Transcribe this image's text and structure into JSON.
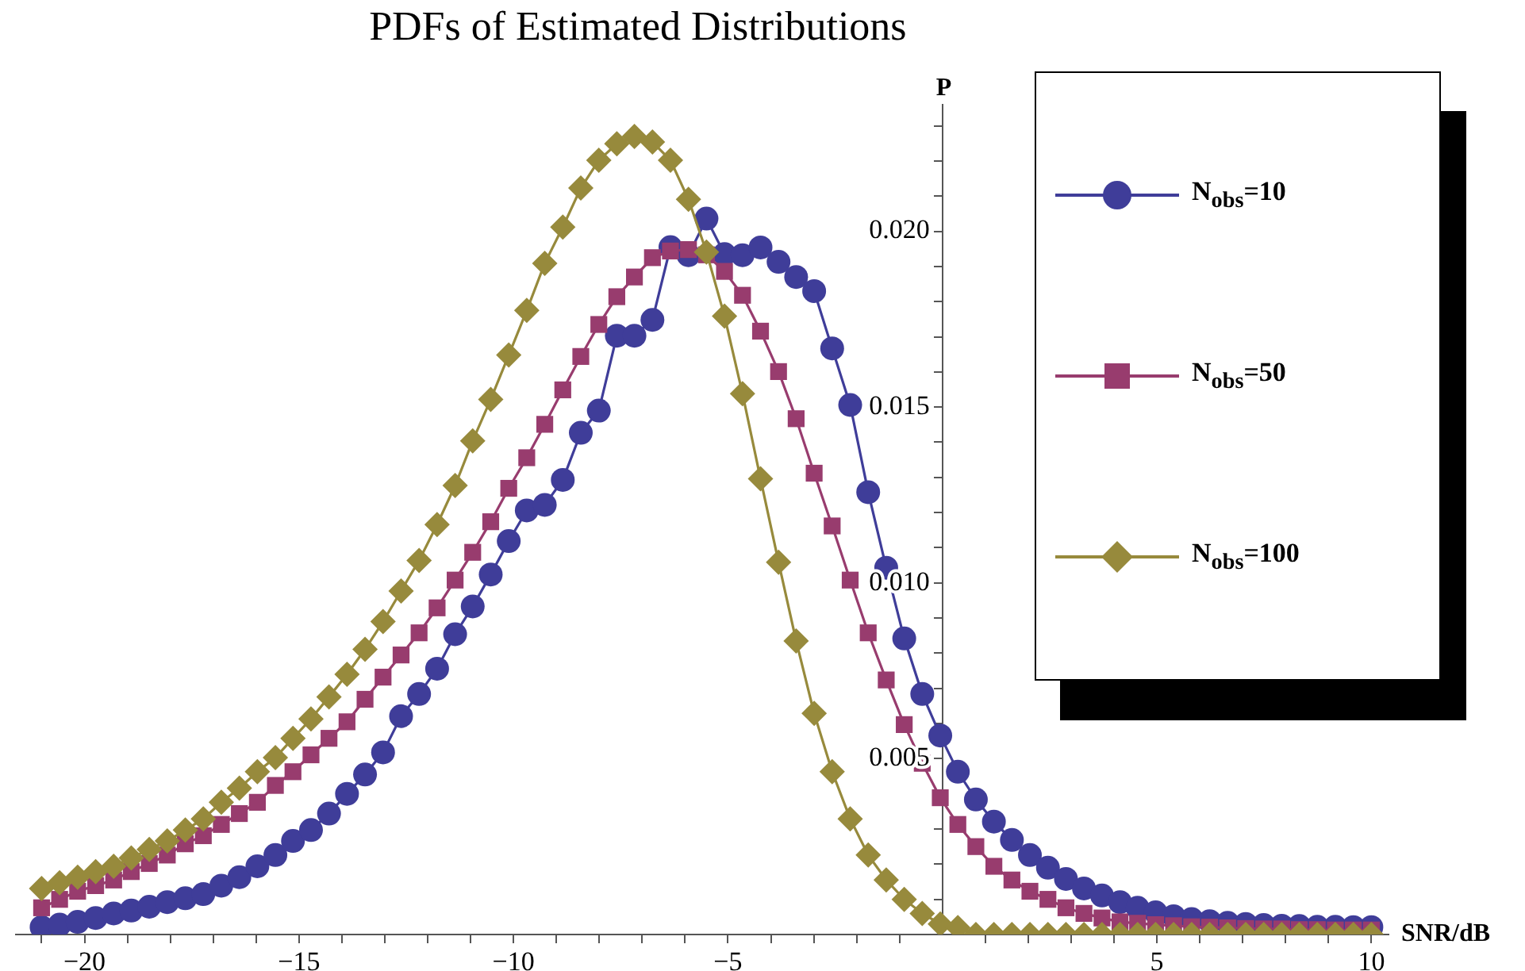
{
  "chart_data": {
    "type": "line",
    "title": "PDFs of Estimated Distributions",
    "xlabel": "SNR/dB",
    "ylabel": "P",
    "legend": "top right",
    "xlim": [
      -21.6,
      10.4
    ],
    "ylim": [
      0,
      0.0236
    ],
    "xticks": [
      {
        "value": -21,
        "label": null
      },
      {
        "value": -20,
        "label": "−20"
      },
      {
        "value": -19,
        "label": null
      },
      {
        "value": -18,
        "label": null
      },
      {
        "value": -17,
        "label": null
      },
      {
        "value": -16,
        "label": null
      },
      {
        "value": -15,
        "label": "−15"
      },
      {
        "value": -14,
        "label": null
      },
      {
        "value": -13,
        "label": null
      },
      {
        "value": -12,
        "label": null
      },
      {
        "value": -11,
        "label": null
      },
      {
        "value": -10,
        "label": "−10"
      },
      {
        "value": -9,
        "label": null
      },
      {
        "value": -8,
        "label": null
      },
      {
        "value": -7,
        "label": null
      },
      {
        "value": -6,
        "label": null
      },
      {
        "value": -5,
        "label": "−5"
      },
      {
        "value": -4,
        "label": null
      },
      {
        "value": -3,
        "label": null
      },
      {
        "value": -2,
        "label": null
      },
      {
        "value": -1,
        "label": null
      },
      {
        "value": 1,
        "label": null
      },
      {
        "value": 2,
        "label": null
      },
      {
        "value": 3,
        "label": null
      },
      {
        "value": 4,
        "label": null
      },
      5,
      {
        "value": 6,
        "label": null
      },
      {
        "value": 7,
        "label": null
      },
      {
        "value": 8,
        "label": null
      },
      {
        "value": 9,
        "label": null
      },
      10
    ],
    "yticks": [
      {
        "value": 0.001,
        "label": null
      },
      {
        "value": 0.002,
        "label": null
      },
      {
        "value": 0.003,
        "label": null
      },
      {
        "value": 0.004,
        "label": null
      },
      {
        "value": 0.005,
        "label": "0.005"
      },
      {
        "value": 0.006,
        "label": null
      },
      {
        "value": 0.007,
        "label": null
      },
      {
        "value": 0.008,
        "label": null
      },
      {
        "value": 0.009,
        "label": null
      },
      {
        "value": 0.01,
        "label": "0.010"
      },
      {
        "value": 0.011,
        "label": null
      },
      {
        "value": 0.012,
        "label": null
      },
      {
        "value": 0.013,
        "label": null
      },
      {
        "value": 0.014,
        "label": null
      },
      {
        "value": 0.015,
        "label": "0.015"
      },
      {
        "value": 0.016,
        "label": null
      },
      {
        "value": 0.017,
        "label": null
      },
      {
        "value": 0.018,
        "label": null
      },
      {
        "value": 0.019,
        "label": null
      },
      {
        "value": 0.02,
        "label": "0.020"
      },
      {
        "value": 0.021,
        "label": null
      },
      {
        "value": 0.022,
        "label": null
      },
      {
        "value": 0.023,
        "label": null
      }
    ],
    "x": [
      -21.0,
      -20.58,
      -20.16,
      -19.74,
      -19.32,
      -18.91,
      -18.49,
      -18.07,
      -17.65,
      -17.23,
      -16.81,
      -16.39,
      -15.97,
      -15.55,
      -15.14,
      -14.72,
      -14.3,
      -13.88,
      -13.46,
      -13.04,
      -12.62,
      -12.2,
      -11.78,
      -11.36,
      -10.95,
      -10.53,
      -10.11,
      -9.69,
      -9.27,
      -8.85,
      -8.43,
      -8.01,
      -7.59,
      -7.18,
      -6.76,
      -6.34,
      -5.92,
      -5.5,
      -5.08,
      -4.66,
      -4.24,
      -3.82,
      -3.41,
      -2.99,
      -2.57,
      -2.15,
      -1.73,
      -1.31,
      -0.89,
      -0.47,
      -0.05,
      0.36,
      0.78,
      1.2,
      1.62,
      2.04,
      2.46,
      2.88,
      3.3,
      3.72,
      4.14,
      4.55,
      4.97,
      5.39,
      5.81,
      6.23,
      6.65,
      7.07,
      7.49,
      7.91,
      8.32,
      8.74,
      9.16,
      9.58,
      10.0
    ],
    "series": [
      {
        "name": "N$_{obs}$=10",
        "color": "#3f3d99",
        "marker": "circle",
        "values": [
          0.00021,
          0.00028,
          0.00036,
          0.00047,
          0.0006,
          0.00068,
          0.00079,
          0.00092,
          0.00103,
          0.00115,
          0.00139,
          0.00163,
          0.00194,
          0.00226,
          0.00266,
          0.00297,
          0.00344,
          0.004,
          0.00455,
          0.00518,
          0.00621,
          0.00684,
          0.00756,
          0.00854,
          0.00933,
          0.01024,
          0.01119,
          0.01206,
          0.01222,
          0.01293,
          0.01427,
          0.0149,
          0.01703,
          0.01703,
          0.01748,
          0.01955,
          0.01932,
          0.02036,
          0.01935,
          0.01932,
          0.01954,
          0.01913,
          0.0187,
          0.0183,
          0.01667,
          0.01506,
          0.01258,
          0.01043,
          0.00842,
          0.00684,
          0.00566,
          0.00463,
          0.00384,
          0.00321,
          0.00269,
          0.00226,
          0.0019,
          0.00158,
          0.00131,
          0.00111,
          0.00092,
          0.00076,
          0.00063,
          0.00052,
          0.00044,
          0.00038,
          0.00033,
          0.0003,
          0.00027,
          0.00025,
          0.00024,
          0.00022,
          0.00022,
          0.00021,
          0.00021
        ]
      },
      {
        "name": "N$_{obs}$=50",
        "color": "#983c6e",
        "marker": "square",
        "values": [
          0.00076,
          0.001,
          0.00123,
          0.00139,
          0.00155,
          0.00179,
          0.00202,
          0.00226,
          0.00258,
          0.00281,
          0.00313,
          0.00344,
          0.00376,
          0.00424,
          0.00463,
          0.00511,
          0.00558,
          0.00605,
          0.00669,
          0.00732,
          0.00795,
          0.00858,
          0.00929,
          0.01008,
          0.01087,
          0.01174,
          0.01269,
          0.01356,
          0.01451,
          0.01549,
          0.01644,
          0.01735,
          0.01814,
          0.0187,
          0.01925,
          0.01944,
          0.01948,
          0.01933,
          0.01886,
          0.01818,
          0.01716,
          0.01601,
          0.01467,
          0.01312,
          0.01162,
          0.01008,
          0.00858,
          0.00724,
          0.00597,
          0.00487,
          0.00389,
          0.00313,
          0.0025,
          0.00194,
          0.00155,
          0.00123,
          0.001,
          0.00076,
          0.0006,
          0.00047,
          0.00036,
          0.00032,
          0.00028,
          0.00025,
          0.00022,
          0.00021,
          0.00019,
          0.00017,
          0.00016,
          0.00016,
          0.00014,
          0.00014,
          0.00013,
          0.00013,
          0.00013
        ]
      },
      {
        "name": "N$_{obs}$=100",
        "color": "#978a3c",
        "marker": "diamond",
        "values": [
          0.00131,
          0.00147,
          0.00163,
          0.00179,
          0.00194,
          0.00218,
          0.00242,
          0.00266,
          0.00297,
          0.00329,
          0.00376,
          0.00416,
          0.00463,
          0.00503,
          0.00558,
          0.00613,
          0.00676,
          0.0074,
          0.00811,
          0.0089,
          0.00977,
          0.01064,
          0.01166,
          0.01277,
          0.01404,
          0.01522,
          0.01648,
          0.01775,
          0.01909,
          0.02012,
          0.02123,
          0.02202,
          0.02249,
          0.0227,
          0.02254,
          0.02202,
          0.02091,
          0.01941,
          0.01759,
          0.01538,
          0.01296,
          0.01059,
          0.00835,
          0.00629,
          0.00463,
          0.00329,
          0.00226,
          0.00155,
          0.001,
          0.0006,
          0.0003,
          0.0002,
          0,
          0,
          0,
          0,
          0,
          0,
          0,
          0,
          0,
          0,
          0,
          0,
          0,
          0,
          0,
          0,
          0,
          0,
          0,
          0,
          0,
          0,
          0
        ]
      }
    ]
  }
}
